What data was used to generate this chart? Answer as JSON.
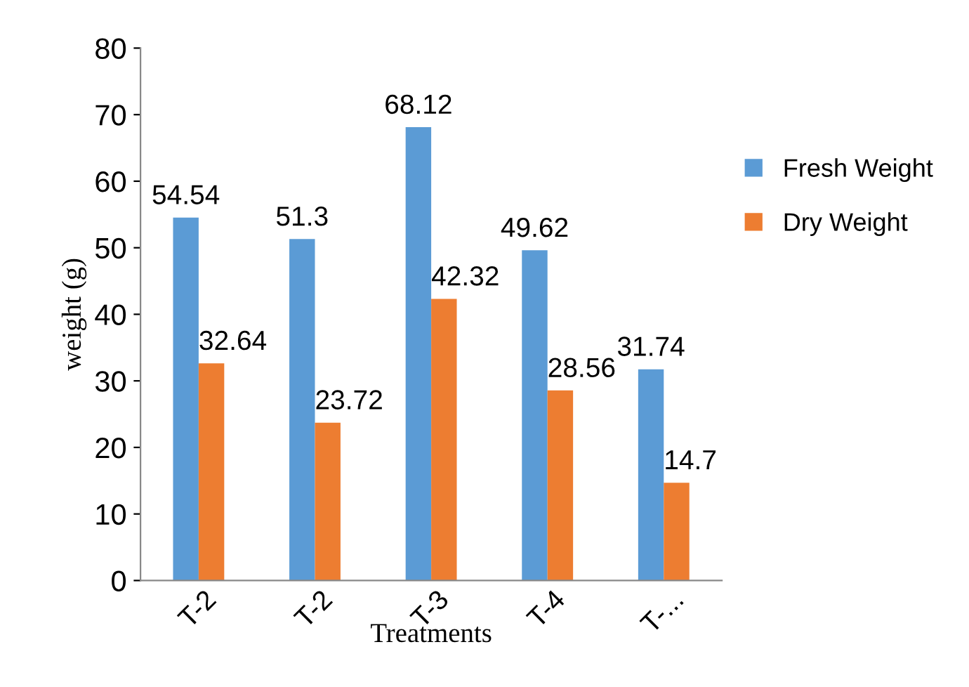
{
  "chart_data": {
    "type": "bar",
    "xlabel": "Treatments",
    "ylabel": "weight (g)",
    "categories": [
      "T-2",
      "T-2",
      "T-3",
      "T-4",
      "T-..."
    ],
    "series": [
      {
        "name": "Fresh Weight",
        "color": "#5b9bd5",
        "values": [
          54.54,
          51.3,
          68.12,
          49.62,
          31.74
        ]
      },
      {
        "name": "Dry Weight",
        "color": "#ed7d31",
        "values": [
          32.64,
          23.72,
          42.32,
          28.56,
          14.7
        ]
      }
    ],
    "ylim": [
      0,
      80
    ],
    "yticks": [
      0,
      10,
      20,
      30,
      40,
      50,
      60,
      70,
      80
    ],
    "data_labels": true,
    "grid": false,
    "legend": "right"
  }
}
